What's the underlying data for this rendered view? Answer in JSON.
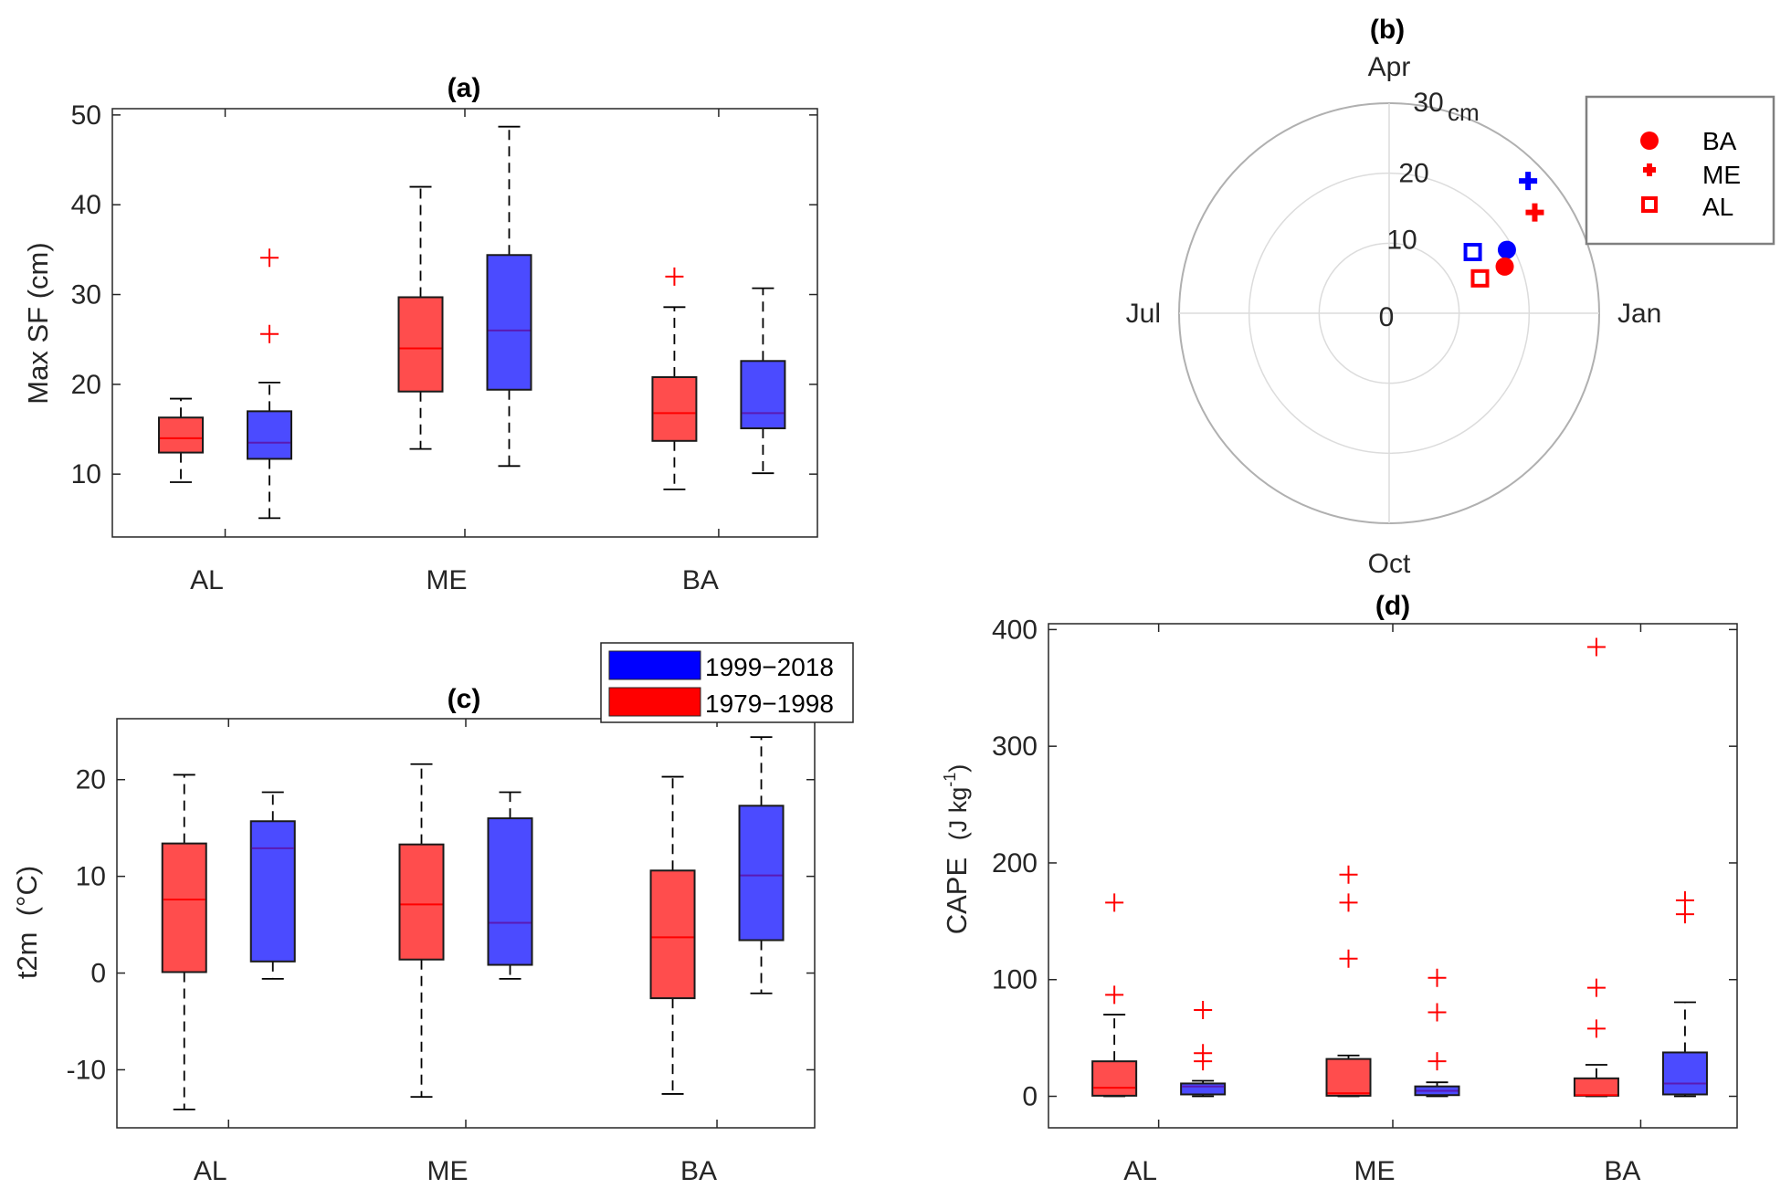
{
  "chart_data": [
    {
      "id": "a",
      "type": "box",
      "title": "(a)",
      "xlabel": "",
      "ylabel": "Max SF (cm)",
      "ylim": [
        3,
        50.7
      ],
      "yticks": [
        10,
        20,
        30,
        40,
        50
      ],
      "categories": [
        "AL",
        "ME",
        "BA"
      ],
      "series": [
        {
          "name": "1979−1998",
          "color": "#ff4d4d",
          "median_color": "#ff0000",
          "boxes": [
            {
              "whislo": 9.1,
              "q1": 12.4,
              "med": 14.0,
              "q3": 16.3,
              "whishi": 18.4,
              "fliers": []
            },
            {
              "whislo": 12.8,
              "q1": 19.2,
              "med": 24.0,
              "q3": 29.7,
              "whishi": 42.0,
              "fliers": []
            },
            {
              "whislo": 8.3,
              "q1": 13.7,
              "med": 16.8,
              "q3": 20.8,
              "whishi": 28.6,
              "fliers": [
                32.0
              ]
            }
          ]
        },
        {
          "name": "1999−2018",
          "color": "#4b4bff",
          "median_color": "#5a1ab4",
          "boxes": [
            {
              "whislo": 5.1,
              "q1": 11.7,
              "med": 13.5,
              "q3": 17.0,
              "whishi": 20.2,
              "fliers": [
                25.6,
                34.1
              ]
            },
            {
              "whislo": 10.9,
              "q1": 19.4,
              "med": 26.0,
              "q3": 34.4,
              "whishi": 48.7,
              "fliers": []
            },
            {
              "whislo": 10.1,
              "q1": 15.1,
              "med": 16.8,
              "q3": 22.6,
              "whishi": 30.7,
              "fliers": []
            }
          ]
        }
      ]
    },
    {
      "id": "b",
      "type": "polar-scatter",
      "title": "(b)",
      "rlim": [
        0,
        30
      ],
      "rticks": [
        "0",
        "10",
        "20",
        "30"
      ],
      "r_unit": "cm",
      "angle_labels": [
        {
          "label": "Jan",
          "angle_deg": 0
        },
        {
          "label": "Apr",
          "angle_deg": 90
        },
        {
          "label": "Jul",
          "angle_deg": 180
        },
        {
          "label": "Oct",
          "angle_deg": 270
        }
      ],
      "legend": [
        {
          "label": "BA",
          "marker": "circle"
        },
        {
          "label": "ME",
          "marker": "plus"
        },
        {
          "label": "AL",
          "marker": "square"
        }
      ],
      "points": [
        {
          "region": "ME",
          "period": "1999−2018",
          "marker": "plus",
          "color": "#0000ff",
          "angle_deg": 43.6,
          "r": 27.4
        },
        {
          "region": "ME",
          "period": "1979−1998",
          "marker": "plus",
          "color": "#ff0000",
          "angle_deg": 34.7,
          "r": 25.3
        },
        {
          "region": "BA",
          "period": "1999−2018",
          "marker": "circle",
          "color": "#0000ff",
          "angle_deg": 28.3,
          "r": 19.1
        },
        {
          "region": "BA",
          "period": "1979−1998",
          "marker": "circle",
          "color": "#ff0000",
          "angle_deg": 22.0,
          "r": 17.8
        },
        {
          "region": "AL",
          "period": "1999−2018",
          "marker": "square",
          "color": "#0000ff",
          "angle_deg": 36.2,
          "r": 14.8
        },
        {
          "region": "AL",
          "period": "1979−1998",
          "marker": "square",
          "color": "#ff0000",
          "angle_deg": 21.0,
          "r": 13.9
        }
      ]
    },
    {
      "id": "c",
      "type": "box",
      "title": "(c)",
      "xlabel": "",
      "ylabel": "t2m  (°C)",
      "ylim": [
        -16,
        26.3
      ],
      "yticks": [
        -10,
        0,
        10,
        20
      ],
      "categories": [
        "AL",
        "ME",
        "BA"
      ],
      "legend": [
        {
          "label": "1999−2018",
          "color": "#0000ff"
        },
        {
          "label": "1979−1998",
          "color": "#ff0000"
        }
      ],
      "series": [
        {
          "name": "1979−1998",
          "color": "#ff4d4d",
          "median_color": "#ff0000",
          "boxes": [
            {
              "whislo": -14.1,
              "q1": 0.1,
              "med": 7.6,
              "q3": 13.4,
              "whishi": 20.5,
              "fliers": []
            },
            {
              "whislo": -12.8,
              "q1": 1.4,
              "med": 7.1,
              "q3": 13.3,
              "whishi": 21.6,
              "fliers": []
            },
            {
              "whislo": -12.5,
              "q1": -2.6,
              "med": 3.7,
              "q3": 10.6,
              "whishi": 20.3,
              "fliers": []
            }
          ]
        },
        {
          "name": "1999−2018",
          "color": "#4b4bff",
          "median_color": "#5a1ab4",
          "boxes": [
            {
              "whislo": -0.6,
              "q1": 1.2,
              "med": 12.9,
              "q3": 15.7,
              "whishi": 18.7,
              "fliers": []
            },
            {
              "whislo": -0.6,
              "q1": 0.85,
              "med": 5.2,
              "q3": 16.0,
              "whishi": 18.7,
              "fliers": []
            },
            {
              "whislo": -2.1,
              "q1": 3.4,
              "med": 10.1,
              "q3": 17.3,
              "whishi": 24.4,
              "fliers": []
            }
          ]
        }
      ]
    },
    {
      "id": "d",
      "type": "box",
      "title": "(d)",
      "xlabel": "",
      "ylabel": "CAPE",
      "ylabel_unit": "(J kg",
      "ylabel_sup": "-1",
      "ylabel_close": ")",
      "ylim": [
        -27,
        405
      ],
      "yticks": [
        0,
        100,
        200,
        300,
        400
      ],
      "categories": [
        "AL",
        "ME",
        "BA"
      ],
      "series": [
        {
          "name": "1979−1998",
          "color": "#ff4d4d",
          "median_color": "#ff0000",
          "boxes": [
            {
              "whislo": 0,
              "q1": 0.5,
              "med": 7.3,
              "q3": 30,
              "whishi": 70,
              "fliers": [
                87,
                166
              ]
            },
            {
              "whislo": 0,
              "q1": 0.5,
              "med": 2.6,
              "q3": 32,
              "whishi": 35,
              "fliers": [
                118,
                166,
                190
              ]
            },
            {
              "whislo": 0,
              "q1": 0.5,
              "med": 1,
              "q3": 15.4,
              "whishi": 27,
              "fliers": [
                58,
                93,
                385
              ]
            }
          ]
        },
        {
          "name": "1999−2018",
          "color": "#4b4bff",
          "median_color": "#5a1ab4",
          "boxes": [
            {
              "whislo": 0,
              "q1": 1.6,
              "med": 8.4,
              "q3": 11,
              "whishi": 13.3,
              "fliers": [
                30,
                37,
                74
              ]
            },
            {
              "whislo": 0,
              "q1": 1,
              "med": 4.7,
              "q3": 8.5,
              "whishi": 12,
              "fliers": [
                30,
                72,
                101.5
              ]
            },
            {
              "whislo": 0,
              "q1": 1.6,
              "med": 11,
              "q3": 37.6,
              "whishi": 80.6,
              "fliers": [
                156,
                168
              ]
            }
          ]
        }
      ]
    }
  ]
}
